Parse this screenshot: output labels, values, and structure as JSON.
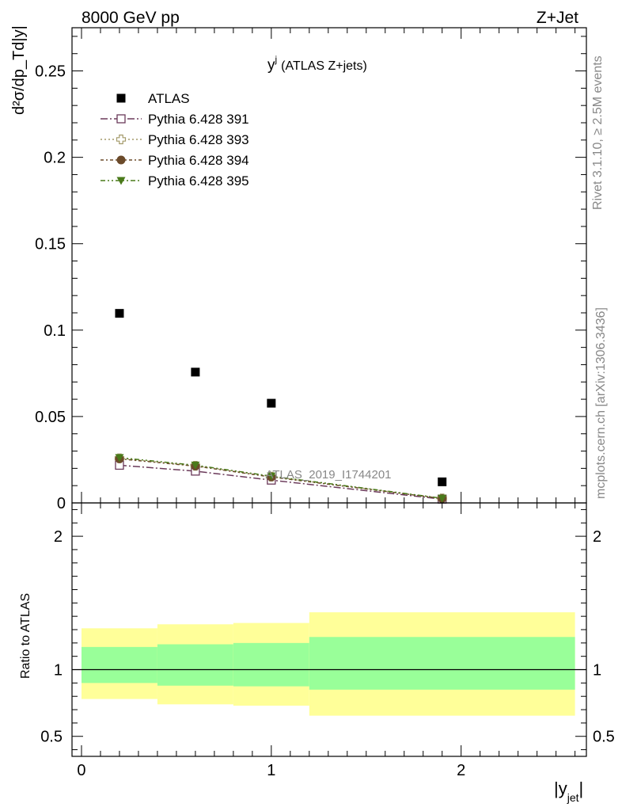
{
  "header": {
    "left": "8000 GeV pp",
    "right": "Z+Jet"
  },
  "side": {
    "rivet": "Rivet 3.1.10, ≥ 2.5M events",
    "mcplots": "mcplots.cern.ch [arXiv:1306.3436]"
  },
  "chart_data": [
    {
      "type": "scatter",
      "title": "y",
      "title_sup": "j",
      "title_suffix": "(ATLAS Z+jets)",
      "watermark": "ATLAS_2019_I1744201",
      "ylabel": "d²σ/dp_Td|y|",
      "xlim": [
        -0.05,
        2.66
      ],
      "ylim": [
        0,
        0.275
      ],
      "yticks": [
        "0",
        "0.05",
        "0.1",
        "0.15",
        "0.2",
        "0.25"
      ],
      "legend_position": "top-left",
      "series": [
        {
          "name": "ATLAS",
          "marker": "filled-square",
          "color": "#000000",
          "x": [
            0.2,
            0.6,
            1.0,
            1.9
          ],
          "y": [
            0.1097,
            0.0757,
            0.0577,
            0.0122
          ]
        },
        {
          "name": "Pythia 6.428 391",
          "marker": "open-square",
          "color": "#6b3a5a",
          "x": [
            0.2,
            0.6,
            1.0,
            1.9
          ],
          "y": [
            0.0218,
            0.0184,
            0.0132,
            0.0022
          ]
        },
        {
          "name": "Pythia 6.428 393",
          "marker": "open-cross",
          "color": "#a39a6a",
          "x": [
            0.2,
            0.6,
            1.0,
            1.9
          ],
          "y": [
            0.0258,
            0.0215,
            0.0152,
            0.0026
          ]
        },
        {
          "name": "Pythia 6.428 394",
          "marker": "filled-circle",
          "color": "#6b4a2a",
          "x": [
            0.2,
            0.6,
            1.0,
            1.9
          ],
          "y": [
            0.0255,
            0.0213,
            0.015,
            0.0025
          ]
        },
        {
          "name": "Pythia 6.428 395",
          "marker": "filled-triangle-down",
          "color": "#4a7a1a",
          "x": [
            0.2,
            0.6,
            1.0,
            1.9
          ],
          "y": [
            0.0262,
            0.0218,
            0.0155,
            0.0027
          ]
        }
      ]
    },
    {
      "type": "area",
      "ylabel": "Ratio to ATLAS",
      "xlabel": "|y",
      "xlabel_sub": "jet",
      "xlabel_suffix": "|",
      "xlim": [
        -0.05,
        2.66
      ],
      "ylim": [
        0.35,
        2.25
      ],
      "yticks": [
        "0.5",
        "1",
        "2"
      ],
      "xticks": [
        "0",
        "1",
        "2"
      ],
      "reference": 1,
      "bins": [
        {
          "lo": 0.0,
          "hi": 0.4,
          "inner": [
            0.9,
            1.17
          ],
          "outer": [
            0.78,
            1.31
          ]
        },
        {
          "lo": 0.4,
          "hi": 0.8,
          "inner": [
            0.88,
            1.19
          ],
          "outer": [
            0.74,
            1.34
          ]
        },
        {
          "lo": 0.8,
          "hi": 1.2,
          "inner": [
            0.875,
            1.2
          ],
          "outer": [
            0.73,
            1.35
          ]
        },
        {
          "lo": 1.2,
          "hi": 2.6,
          "inner": [
            0.85,
            1.245
          ],
          "outer": [
            0.655,
            1.43
          ]
        }
      ],
      "colors": {
        "inner": "#99ff99",
        "outer": "#ffff99"
      }
    }
  ]
}
